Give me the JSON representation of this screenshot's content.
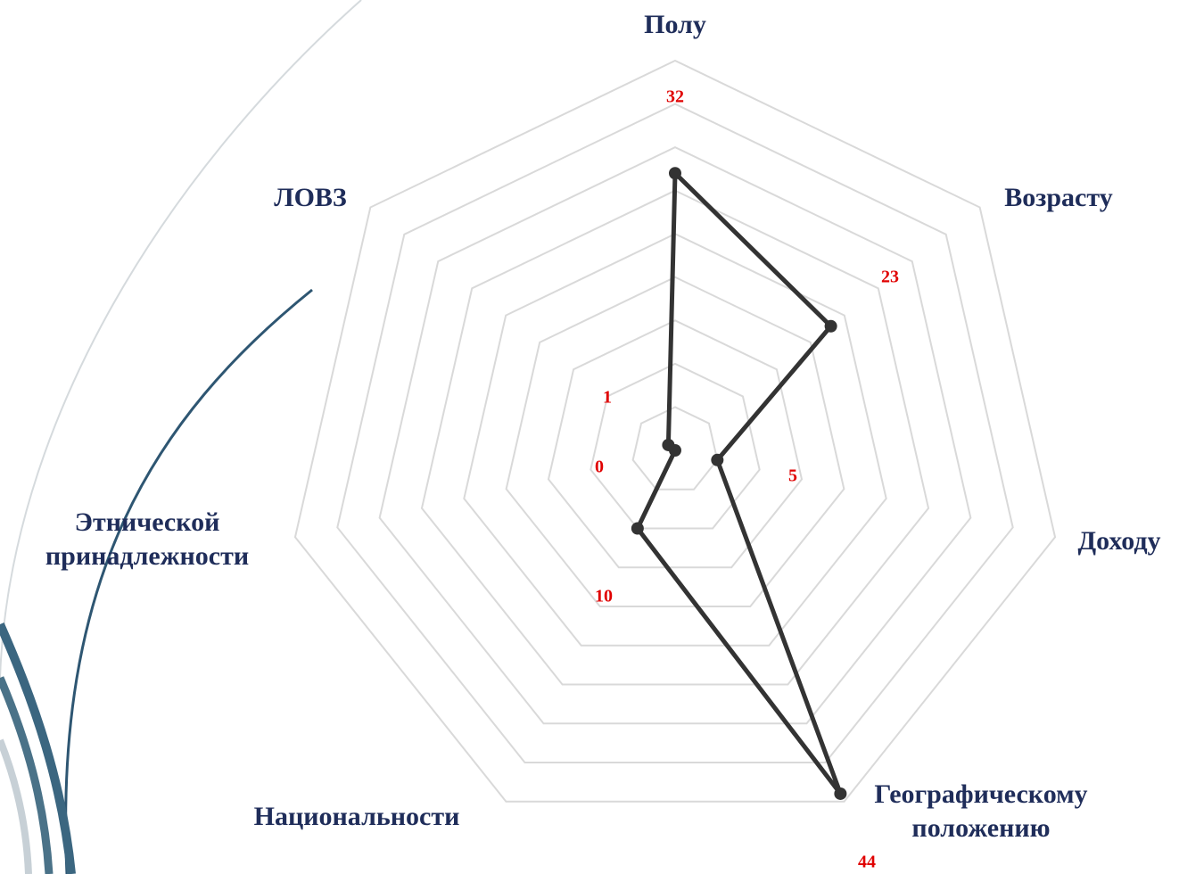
{
  "chart_data": {
    "type": "radar",
    "categories": [
      "Полу",
      "Возрасту",
      "Доходу",
      "Географическому положению",
      "Национальности",
      "Этнической принадлежности",
      "ЛОВЗ"
    ],
    "values": [
      32,
      23,
      5,
      44,
      10,
      0,
      1
    ],
    "color": "#333333",
    "label_color": "#e00000",
    "ylim": [
      0,
      45
    ],
    "yticks": [
      0,
      5,
      10,
      15,
      20,
      25,
      30,
      35,
      40,
      45
    ],
    "grid": true
  }
}
